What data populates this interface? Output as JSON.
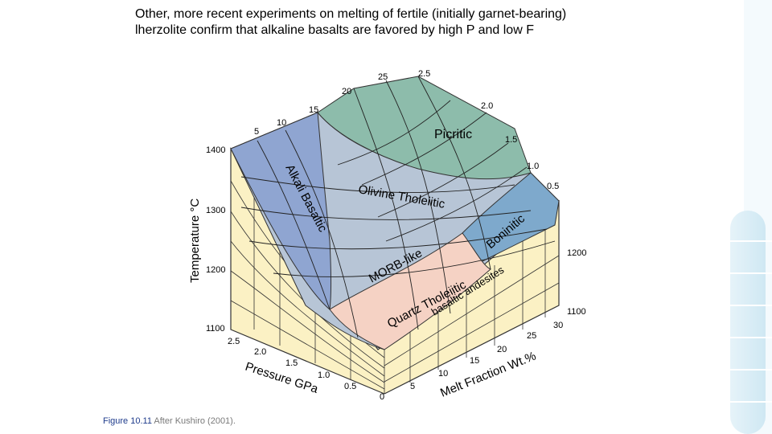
{
  "slide": {
    "text": "Other, more recent experiments on melting of fertile (initially garnet-bearing) lherzolite confirm that alkaline basalts are favored by high P and low F"
  },
  "caption": {
    "figure": "Figure 10.11",
    "source": "After Kushiro (2001)."
  },
  "axes": {
    "temperature": {
      "label": "Temperature °C",
      "ticks": [
        "1400",
        "1300",
        "1200",
        "1100"
      ]
    },
    "right_temperature": {
      "ticks": [
        "1200",
        "1100"
      ]
    },
    "pressure": {
      "label": "Pressure GPa",
      "ticks": [
        "2.5",
        "2.0",
        "1.5",
        "1.0",
        "0.5",
        "0"
      ]
    },
    "melt_fraction": {
      "label": "Melt Fraction Wt.%",
      "ticks": [
        "0",
        "5",
        "10",
        "15",
        "20",
        "25",
        "30"
      ]
    },
    "surface_top_ticks": {
      "melt": [
        "5",
        "10",
        "15",
        "20",
        "25"
      ],
      "pressure": [
        "2.5",
        "2.0",
        "1.5",
        "1.0",
        "0.5"
      ]
    }
  },
  "regions": {
    "alkali_basaltic": "Alkali Basaltic",
    "picritic": "Picritic",
    "olivine_tholeiitic": "Olivine Tholeiitic",
    "morb_like": "MORB-like",
    "boninitic": "Boninitic",
    "quartz_tholeiitic": "Quartz Tholeiitic",
    "basaltic_andesites": "basaltic andesites"
  },
  "colors": {
    "alkali": "#8fa5d1",
    "picritic": "#8dbcab",
    "olivine": "#b7c5d6",
    "boninitic": "#7ea9cc",
    "quartz": "#f5d2c4",
    "base": "#fbf1c4",
    "grid": "#222222",
    "caption_fig": "#1f3c8c",
    "caption_text": "#7a7a7a"
  }
}
